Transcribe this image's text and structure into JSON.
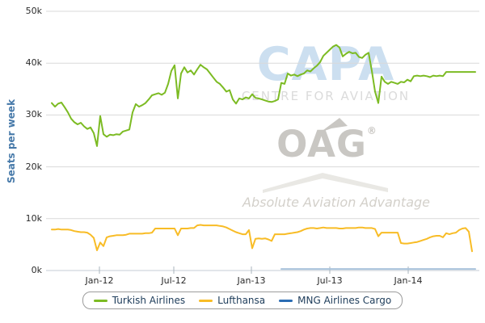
{
  "page": {
    "background": "#ffffff"
  },
  "chart_data": {
    "type": "line",
    "title": "",
    "xlabel": "",
    "ylabel": "Seats per week",
    "ylim": [
      0,
      50000
    ],
    "grid": "horizontal",
    "legend_position": "bottom",
    "yticks": [
      "0k",
      "10k",
      "20k",
      "30k",
      "40k",
      "50k"
    ],
    "ytick_values": [
      0,
      10,
      20,
      30,
      40,
      50
    ],
    "xticks": [
      "Jan-12",
      "Jul-12",
      "Jan-13",
      "Jul-13",
      "Jan-14"
    ],
    "x_domain": "weekly data, approx Sep-2011 to Jun-2014",
    "units": "values below are thousands of seats per week",
    "series": [
      {
        "name": "Turkish Airlines",
        "color": "#7cbb23",
        "x_start": 64,
        "x_step": 4,
        "values": [
          32.3,
          31.6,
          32.2,
          32.4,
          31.5,
          30.5,
          29.3,
          28.6,
          28.2,
          28.5,
          27.8,
          27.3,
          27.6,
          26.5,
          24.0,
          29.8,
          26.3,
          25.8,
          26.2,
          26.1,
          26.3,
          26.2,
          26.8,
          27.0,
          27.2,
          30.5,
          32.1,
          31.6,
          31.9,
          32.3,
          33.0,
          33.8,
          34.0,
          34.2,
          33.9,
          34.3,
          36.0,
          38.5,
          39.6,
          33.2,
          38.0,
          39.2,
          38.2,
          38.6,
          37.8,
          38.8,
          39.7,
          39.2,
          38.8,
          38.0,
          37.2,
          36.4,
          36.0,
          35.3,
          34.5,
          34.8,
          33.0,
          32.2,
          33.2,
          33.0,
          33.4,
          33.2,
          34.0,
          33.3,
          33.2,
          33.0,
          32.8,
          32.6,
          32.5,
          32.7,
          33.0,
          36.2,
          36.0,
          38.0,
          37.6,
          37.8,
          37.5,
          37.8,
          38.0,
          38.6,
          38.4,
          39.0,
          39.5,
          40.2,
          41.4,
          42.0,
          42.6,
          43.2,
          43.5,
          43.0,
          41.3,
          41.8,
          42.2,
          41.9,
          42.0,
          41.2,
          41.0,
          41.6,
          42.0,
          38.5,
          34.5,
          32.3,
          37.4,
          36.4,
          36.0,
          36.4,
          36.2,
          36.0,
          36.4,
          36.3,
          36.8,
          36.5,
          37.5,
          37.6,
          37.5,
          37.6,
          37.5,
          37.3,
          37.6,
          37.5,
          37.6,
          37.5,
          38.3,
          38.3,
          38.3,
          38.3,
          38.3,
          38.3,
          38.3,
          38.3,
          38.3,
          38.3
        ]
      },
      {
        "name": "Lufthansa",
        "color": "#f8bc26",
        "x_start": 64,
        "x_step": 4,
        "values": [
          7.9,
          7.9,
          8.0,
          7.9,
          7.9,
          7.9,
          7.8,
          7.6,
          7.5,
          7.4,
          7.4,
          7.3,
          6.9,
          6.3,
          3.9,
          5.4,
          4.7,
          6.4,
          6.6,
          6.7,
          6.8,
          6.8,
          6.8,
          6.9,
          7.1,
          7.1,
          7.1,
          7.1,
          7.1,
          7.2,
          7.2,
          7.3,
          8.1,
          8.1,
          8.1,
          8.1,
          8.1,
          8.1,
          8.1,
          6.8,
          8.1,
          8.1,
          8.1,
          8.2,
          8.2,
          8.7,
          8.8,
          8.7,
          8.7,
          8.7,
          8.7,
          8.7,
          8.6,
          8.5,
          8.3,
          8.0,
          7.7,
          7.4,
          7.2,
          7.0,
          7.0,
          7.8,
          4.3,
          6.1,
          6.2,
          6.1,
          6.2,
          6.0,
          5.7,
          7.0,
          7.0,
          7.0,
          7.0,
          7.1,
          7.2,
          7.3,
          7.4,
          7.6,
          7.9,
          8.1,
          8.2,
          8.2,
          8.1,
          8.2,
          8.3,
          8.2,
          8.2,
          8.2,
          8.2,
          8.1,
          8.1,
          8.2,
          8.2,
          8.2,
          8.2,
          8.3,
          8.3,
          8.2,
          8.2,
          8.2,
          8.0,
          6.6,
          7.3,
          7.3,
          7.3,
          7.3,
          7.3,
          7.3,
          5.3,
          5.2,
          5.2,
          5.3,
          5.4,
          5.5,
          5.7,
          5.9,
          6.1,
          6.4,
          6.6,
          6.7,
          6.7,
          6.4,
          7.2,
          7.0,
          7.2,
          7.3,
          7.8,
          8.1,
          8.2,
          7.5,
          3.7
        ]
      },
      {
        "name": "MNG Airlines Cargo",
        "color": "#2a6cb3",
        "plot_color": "#a9c3dc",
        "x_start": 348,
        "x_step": 240,
        "values": [
          0.3,
          0.3
        ]
      }
    ]
  },
  "watermarks": {
    "capa": {
      "title": "CAPA",
      "subtitle": "CENTRE FOR AVIATION"
    },
    "oag": {
      "title": "OAG",
      "registered": "®",
      "tagline": "Absolute Aviation Advantage"
    }
  },
  "colors": {
    "y_axis_title": "#4679a9",
    "tick_label": "#2b2b2b",
    "gridline": "#d9d9d9",
    "axis_line": "#c6ced6",
    "legend_border": "#9b9b9b",
    "legend_text": "#1d3c5a",
    "capa_watermark": "#ccdff0",
    "oag_watermark": "#c9c7c3"
  }
}
